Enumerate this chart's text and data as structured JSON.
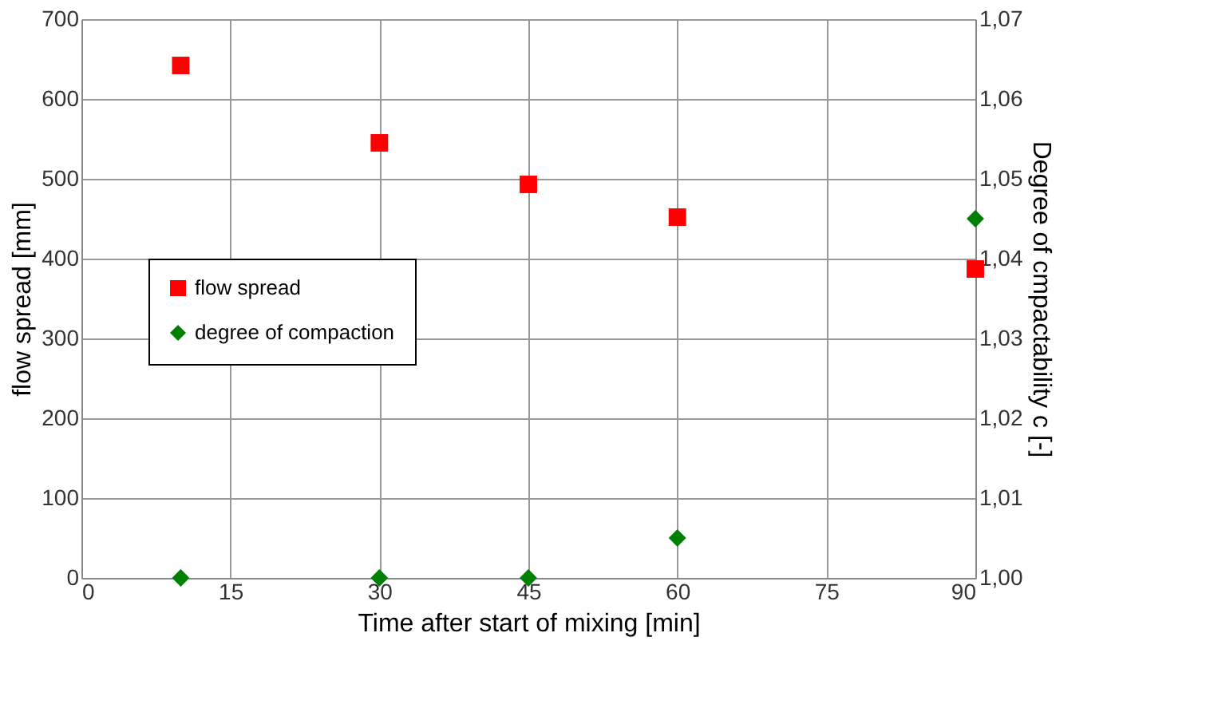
{
  "chart_data": {
    "type": "scatter",
    "xlabel": "Time after start of mixing [min]",
    "ylabel": "flow spread [mm]",
    "y2label": "Degree of cmpactability c [-]",
    "x": [
      10,
      30,
      45,
      60,
      90
    ],
    "series": [
      {
        "name": "flow spread",
        "color": "#ff0000",
        "marker": "square",
        "values": [
          642,
          545,
          493,
          452,
          387
        ]
      },
      {
        "name": "degree of compaction",
        "color": "#008000",
        "marker": "diamond",
        "axis": "y2",
        "values": [
          1.0,
          1.0,
          1.0,
          1.005,
          1.045
        ]
      }
    ],
    "xlim": [
      0,
      90
    ],
    "xticks": [
      0,
      15,
      30,
      45,
      60,
      75,
      90
    ],
    "ylim": [
      0,
      700
    ],
    "yticks": [
      0,
      100,
      200,
      300,
      400,
      500,
      600,
      700
    ],
    "y2lim": [
      1.0,
      1.07
    ],
    "y2ticks": [
      {
        "value": 1.0,
        "label": "1,00"
      },
      {
        "value": 1.01,
        "label": "1,01"
      },
      {
        "value": 1.02,
        "label": "1,02"
      },
      {
        "value": 1.03,
        "label": "1,03"
      },
      {
        "value": 1.04,
        "label": "1,04"
      },
      {
        "value": 1.05,
        "label": "1,05"
      },
      {
        "value": 1.06,
        "label": "1,06"
      },
      {
        "value": 1.07,
        "label": "1,07"
      }
    ],
    "grid": true,
    "legend": "left"
  }
}
